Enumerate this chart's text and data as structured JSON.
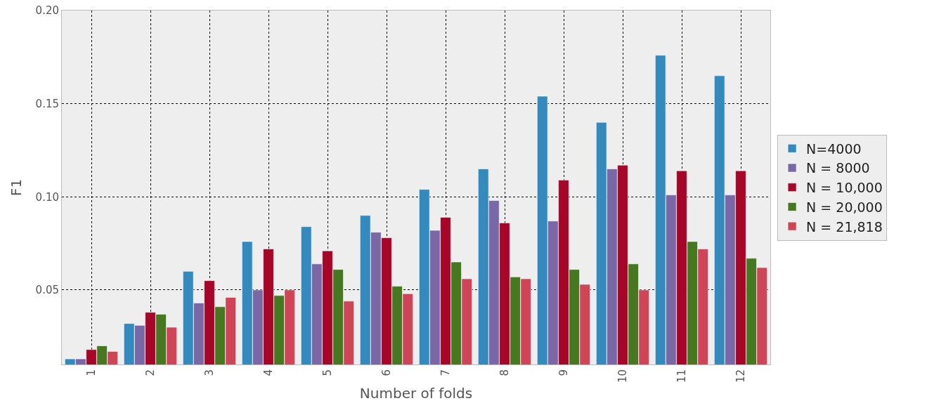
{
  "chart_data": {
    "type": "bar",
    "xlabel": "Number of folds",
    "ylabel": "F1",
    "categories": [
      "1",
      "2",
      "3",
      "4",
      "5",
      "6",
      "7",
      "8",
      "9",
      "10",
      "11",
      "12"
    ],
    "series": [
      {
        "name": "N=4000",
        "color": "#348abd",
        "values": [
          0.013,
          0.032,
          0.06,
          0.076,
          0.084,
          0.09,
          0.104,
          0.115,
          0.154,
          0.14,
          0.176,
          0.165
        ]
      },
      {
        "name": "N = 8000",
        "color": "#7a68a6",
        "values": [
          0.013,
          0.031,
          0.043,
          0.05,
          0.064,
          0.081,
          0.082,
          0.098,
          0.087,
          0.115,
          0.101,
          0.101
        ]
      },
      {
        "name": "N = 10,000",
        "color": "#a60628",
        "values": [
          0.018,
          0.038,
          0.055,
          0.072,
          0.071,
          0.078,
          0.089,
          0.086,
          0.109,
          0.117,
          0.114,
          0.114
        ]
      },
      {
        "name": "N = 20,000",
        "color": "#467821",
        "values": [
          0.02,
          0.037,
          0.041,
          0.047,
          0.061,
          0.052,
          0.065,
          0.057,
          0.061,
          0.064,
          0.076,
          0.067
        ]
      },
      {
        "name": "N = 21,818",
        "color": "#cf4457",
        "values": [
          0.017,
          0.03,
          0.046,
          0.05,
          0.044,
          0.048,
          0.056,
          0.056,
          0.053,
          0.05,
          0.072,
          0.062
        ]
      }
    ],
    "ylim": [
      0.01,
      0.2
    ],
    "yticks": [
      {
        "value": 0.05,
        "label": "0.05"
      },
      {
        "value": 0.1,
        "label": "0.10"
      },
      {
        "value": 0.15,
        "label": "0.15"
      },
      {
        "value": 0.2,
        "label": "0.20"
      }
    ],
    "grid": true,
    "legend": "right"
  }
}
